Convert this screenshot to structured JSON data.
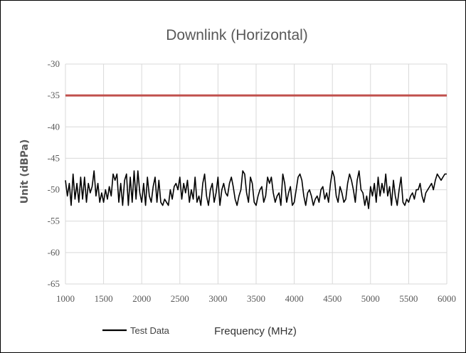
{
  "chart_data": {
    "type": "line",
    "title": "Downlink (Horizontal)",
    "xlabel": "Frequency (MHz)",
    "ylabel": "Unit (dBPa)",
    "xlim": [
      1000,
      6000
    ],
    "ylim": [
      -65,
      -30
    ],
    "x_ticks": [
      1000,
      1500,
      2000,
      2500,
      3000,
      3500,
      4000,
      4500,
      5000,
      5500,
      6000
    ],
    "y_ticks": [
      -30,
      -35,
      -40,
      -45,
      -50,
      -55,
      -60,
      -65
    ],
    "grid": true,
    "legend_position": "bottom-left",
    "series": [
      {
        "name": "Test Data",
        "color": "#000000",
        "points": [
          [
            1000,
            -48.5
          ],
          [
            1025,
            -51
          ],
          [
            1050,
            -49
          ],
          [
            1075,
            -52.5
          ],
          [
            1100,
            -47.5
          ],
          [
            1125,
            -51.5
          ],
          [
            1150,
            -49
          ],
          [
            1175,
            -52
          ],
          [
            1200,
            -48
          ],
          [
            1225,
            -51.5
          ],
          [
            1250,
            -48
          ],
          [
            1275,
            -52
          ],
          [
            1300,
            -49
          ],
          [
            1325,
            -50.5
          ],
          [
            1350,
            -49.5
          ],
          [
            1375,
            -47
          ],
          [
            1400,
            -51
          ],
          [
            1425,
            -49
          ],
          [
            1450,
            -52
          ],
          [
            1475,
            -50.5
          ],
          [
            1500,
            -52
          ],
          [
            1525,
            -50
          ],
          [
            1550,
            -51.5
          ],
          [
            1575,
            -49.5
          ],
          [
            1600,
            -51
          ],
          [
            1625,
            -47.5
          ],
          [
            1650,
            -48.5
          ],
          [
            1675,
            -47.5
          ],
          [
            1700,
            -52
          ],
          [
            1725,
            -49
          ],
          [
            1750,
            -52.5
          ],
          [
            1775,
            -48.5
          ],
          [
            1800,
            -47.5
          ],
          [
            1825,
            -52.5
          ],
          [
            1850,
            -48
          ],
          [
            1875,
            -52
          ],
          [
            1900,
            -47
          ],
          [
            1925,
            -51.5
          ],
          [
            1950,
            -47
          ],
          [
            1975,
            -50.5
          ],
          [
            2000,
            -52
          ],
          [
            2025,
            -49
          ],
          [
            2050,
            -52.5
          ],
          [
            2075,
            -48
          ],
          [
            2100,
            -51
          ],
          [
            2125,
            -52
          ],
          [
            2150,
            -49.5
          ],
          [
            2175,
            -48
          ],
          [
            2200,
            -52
          ],
          [
            2225,
            -48.5
          ],
          [
            2250,
            -52
          ],
          [
            2275,
            -52.5
          ],
          [
            2300,
            -51.5
          ],
          [
            2325,
            -52
          ],
          [
            2350,
            -52.5
          ],
          [
            2375,
            -50
          ],
          [
            2400,
            -51.5
          ],
          [
            2425,
            -49.5
          ],
          [
            2450,
            -49
          ],
          [
            2475,
            -50
          ],
          [
            2500,
            -48
          ],
          [
            2525,
            -51.5
          ],
          [
            2550,
            -49
          ],
          [
            2575,
            -50.5
          ],
          [
            2600,
            -48.5
          ],
          [
            2625,
            -52
          ],
          [
            2650,
            -50
          ],
          [
            2675,
            -51.5
          ],
          [
            2700,
            -48
          ],
          [
            2725,
            -52
          ],
          [
            2750,
            -51
          ],
          [
            2775,
            -52.5
          ],
          [
            2800,
            -49
          ],
          [
            2825,
            -47.5
          ],
          [
            2850,
            -51
          ],
          [
            2875,
            -52.5
          ],
          [
            2900,
            -50
          ],
          [
            2925,
            -49
          ],
          [
            2950,
            -52
          ],
          [
            2975,
            -50.5
          ],
          [
            3000,
            -48
          ],
          [
            3025,
            -52.5
          ],
          [
            3050,
            -50
          ],
          [
            3075,
            -49
          ],
          [
            3100,
            -50.5
          ],
          [
            3125,
            -51
          ],
          [
            3150,
            -49
          ],
          [
            3175,
            -48
          ],
          [
            3200,
            -49.5
          ],
          [
            3225,
            -51.5
          ],
          [
            3250,
            -52.5
          ],
          [
            3275,
            -51
          ],
          [
            3300,
            -50
          ],
          [
            3325,
            -47
          ],
          [
            3350,
            -47.5
          ],
          [
            3375,
            -50.5
          ],
          [
            3400,
            -52
          ],
          [
            3425,
            -48
          ],
          [
            3450,
            -49
          ],
          [
            3475,
            -52
          ],
          [
            3500,
            -52.5
          ],
          [
            3525,
            -51
          ],
          [
            3550,
            -50
          ],
          [
            3575,
            -49.5
          ],
          [
            3600,
            -52
          ],
          [
            3625,
            -51
          ],
          [
            3650,
            -48
          ],
          [
            3675,
            -49
          ],
          [
            3700,
            -48
          ],
          [
            3725,
            -50.5
          ],
          [
            3750,
            -52
          ],
          [
            3775,
            -51
          ],
          [
            3800,
            -50.5
          ],
          [
            3825,
            -52.5
          ],
          [
            3850,
            -47.5
          ],
          [
            3875,
            -49
          ],
          [
            3900,
            -52
          ],
          [
            3925,
            -50.5
          ],
          [
            3950,
            -49.5
          ],
          [
            3975,
            -52.5
          ],
          [
            4000,
            -52
          ],
          [
            4025,
            -50
          ],
          [
            4050,
            -48
          ],
          [
            4075,
            -47.5
          ],
          [
            4100,
            -48.5
          ],
          [
            4125,
            -51
          ],
          [
            4150,
            -52.5
          ],
          [
            4175,
            -50.5
          ],
          [
            4200,
            -50
          ],
          [
            4225,
            -51
          ],
          [
            4250,
            -52.5
          ],
          [
            4275,
            -51.5
          ],
          [
            4300,
            -51
          ],
          [
            4325,
            -52
          ],
          [
            4350,
            -50
          ],
          [
            4375,
            -49.5
          ],
          [
            4400,
            -51.5
          ],
          [
            4425,
            -50.5
          ],
          [
            4450,
            -52
          ],
          [
            4475,
            -49
          ],
          [
            4500,
            -47
          ],
          [
            4525,
            -48
          ],
          [
            4550,
            -51
          ],
          [
            4575,
            -52
          ],
          [
            4600,
            -49.5
          ],
          [
            4625,
            -50.5
          ],
          [
            4650,
            -52
          ],
          [
            4675,
            -51.5
          ],
          [
            4700,
            -49
          ],
          [
            4725,
            -47.5
          ],
          [
            4750,
            -48.5
          ],
          [
            4775,
            -50
          ],
          [
            4800,
            -52
          ],
          [
            4825,
            -48.5
          ],
          [
            4850,
            -47
          ],
          [
            4875,
            -50
          ],
          [
            4900,
            -50.5
          ],
          [
            4925,
            -52.5
          ],
          [
            4950,
            -51
          ],
          [
            4975,
            -53
          ],
          [
            5000,
            -49.5
          ],
          [
            5025,
            -51
          ],
          [
            5050,
            -49
          ],
          [
            5075,
            -52
          ],
          [
            5100,
            -48
          ],
          [
            5125,
            -51
          ],
          [
            5150,
            -49
          ],
          [
            5175,
            -50.5
          ],
          [
            5200,
            -47.5
          ],
          [
            5225,
            -51
          ],
          [
            5250,
            -49.5
          ],
          [
            5275,
            -52.5
          ],
          [
            5300,
            -48.5
          ],
          [
            5325,
            -51
          ],
          [
            5350,
            -52.5
          ],
          [
            5375,
            -50
          ],
          [
            5400,
            -48
          ],
          [
            5425,
            -52
          ],
          [
            5450,
            -52.5
          ],
          [
            5475,
            -51.5
          ],
          [
            5500,
            -52
          ],
          [
            5525,
            -51
          ],
          [
            5550,
            -50.5
          ],
          [
            5575,
            -51.5
          ],
          [
            5600,
            -50
          ],
          [
            5625,
            -50
          ],
          [
            5650,
            -49
          ],
          [
            5675,
            -51
          ],
          [
            5700,
            -52
          ],
          [
            5725,
            -50.5
          ],
          [
            5750,
            -50
          ],
          [
            5775,
            -49.5
          ],
          [
            5800,
            -49
          ],
          [
            5825,
            -50
          ],
          [
            5850,
            -48.5
          ],
          [
            5875,
            -47.5
          ],
          [
            5900,
            -48
          ],
          [
            5925,
            -48.5
          ],
          [
            5950,
            -48
          ],
          [
            5975,
            -47.5
          ],
          [
            6000,
            -47.5
          ]
        ]
      },
      {
        "color": "#C0504D",
        "points": [
          [
            1000,
            -35
          ],
          [
            6000,
            -35
          ]
        ]
      }
    ]
  }
}
